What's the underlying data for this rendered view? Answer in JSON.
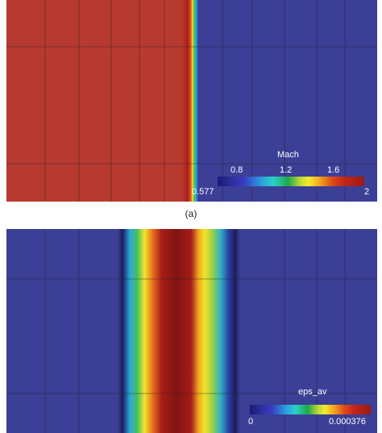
{
  "colors": {
    "supersonic_red": "#b73a30",
    "subsonic_blue": "#3c3f96",
    "grid_line": "#222222",
    "colorbar_text": "#ffffff"
  },
  "panel_a": {
    "caption": "(a)",
    "colorbar": {
      "title": "Mach",
      "min_label": "0.577",
      "max_label": "2",
      "tick_labels": [
        "0.8",
        "1.2",
        "1.6"
      ]
    }
  },
  "panel_b": {
    "colorbar": {
      "title": "eps_av",
      "min_label": "0",
      "max_label": "0.000376"
    }
  }
}
